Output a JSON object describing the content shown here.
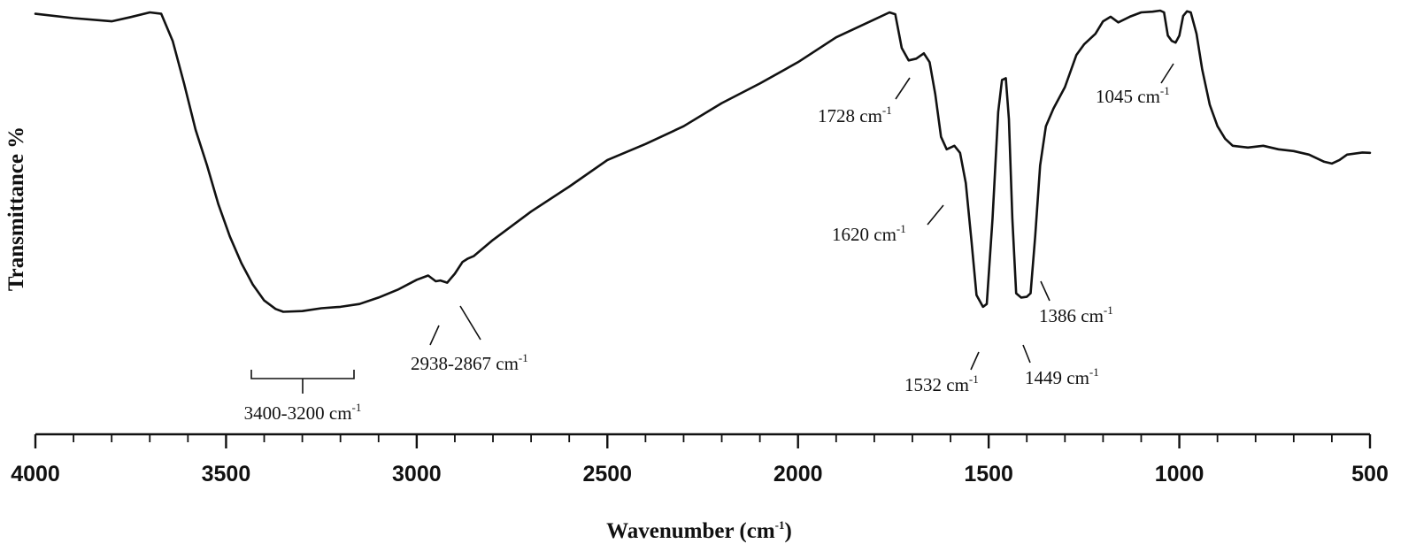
{
  "chart_data": {
    "type": "line",
    "xlabel": "Wavenumber (cm",
    "xlabel_sup": "-1",
    "xlabel_close": ")",
    "ylabel": "Transmittance %",
    "xlim": [
      4000,
      500
    ],
    "x_reversed": true,
    "xticks": [
      "4000",
      "3500",
      "3000",
      "2500",
      "2000",
      "1500",
      "1000",
      "500"
    ],
    "ylim": [
      0,
      100
    ],
    "grid": false,
    "legend": "none",
    "series": [
      {
        "color": "#111111",
        "points": [
          [
            4000,
            97.6
          ],
          [
            3900,
            96.4
          ],
          [
            3800,
            95.5
          ],
          [
            3750,
            96.7
          ],
          [
            3700,
            98.0
          ],
          [
            3670,
            97.6
          ],
          [
            3640,
            90.0
          ],
          [
            3610,
            78.0
          ],
          [
            3580,
            65.0
          ],
          [
            3550,
            55.0
          ],
          [
            3520,
            44.0
          ],
          [
            3490,
            35.0
          ],
          [
            3460,
            27.5
          ],
          [
            3430,
            21.5
          ],
          [
            3400,
            17.0
          ],
          [
            3370,
            14.6
          ],
          [
            3350,
            13.8
          ],
          [
            3300,
            14.0
          ],
          [
            3250,
            14.8
          ],
          [
            3200,
            15.2
          ],
          [
            3150,
            16.0
          ],
          [
            3100,
            17.8
          ],
          [
            3050,
            20.0
          ],
          [
            3000,
            22.8
          ],
          [
            2970,
            24.0
          ],
          [
            2950,
            22.4
          ],
          [
            2938,
            22.6
          ],
          [
            2920,
            22.0
          ],
          [
            2900,
            24.5
          ],
          [
            2880,
            27.8
          ],
          [
            2867,
            28.7
          ],
          [
            2850,
            29.5
          ],
          [
            2800,
            34.0
          ],
          [
            2700,
            42.0
          ],
          [
            2600,
            49.0
          ],
          [
            2500,
            56.5
          ],
          [
            2400,
            61.0
          ],
          [
            2300,
            66.0
          ],
          [
            2200,
            72.5
          ],
          [
            2100,
            78.0
          ],
          [
            2000,
            84.0
          ],
          [
            1900,
            91.0
          ],
          [
            1800,
            96.0
          ],
          [
            1760,
            98.0
          ],
          [
            1745,
            97.5
          ],
          [
            1728,
            88.0
          ],
          [
            1710,
            84.5
          ],
          [
            1690,
            85.0
          ],
          [
            1670,
            86.5
          ],
          [
            1655,
            84.0
          ],
          [
            1640,
            75.0
          ],
          [
            1625,
            63.0
          ],
          [
            1610,
            59.5
          ],
          [
            1590,
            60.5
          ],
          [
            1575,
            58.5
          ],
          [
            1560,
            50.0
          ],
          [
            1545,
            33.5
          ],
          [
            1532,
            18.5
          ],
          [
            1515,
            15.2
          ],
          [
            1505,
            16.0
          ],
          [
            1490,
            40.0
          ],
          [
            1475,
            70.0
          ],
          [
            1465,
            79.0
          ],
          [
            1455,
            79.5
          ],
          [
            1447,
            68.0
          ],
          [
            1438,
            40.0
          ],
          [
            1428,
            19.0
          ],
          [
            1415,
            17.8
          ],
          [
            1400,
            18.0
          ],
          [
            1390,
            19.0
          ],
          [
            1378,
            35.0
          ],
          [
            1365,
            55.0
          ],
          [
            1350,
            66.0
          ],
          [
            1330,
            71.0
          ],
          [
            1300,
            77.0
          ],
          [
            1270,
            86.0
          ],
          [
            1250,
            89.0
          ],
          [
            1220,
            92.0
          ],
          [
            1200,
            95.5
          ],
          [
            1180,
            96.8
          ],
          [
            1160,
            95.2
          ],
          [
            1130,
            96.8
          ],
          [
            1100,
            98.0
          ],
          [
            1070,
            98.2
          ],
          [
            1050,
            98.5
          ],
          [
            1040,
            98.0
          ],
          [
            1030,
            91.5
          ],
          [
            1020,
            90.0
          ],
          [
            1010,
            89.5
          ],
          [
            1000,
            91.5
          ],
          [
            990,
            97.0
          ],
          [
            980,
            98.3
          ],
          [
            970,
            98.0
          ],
          [
            955,
            92.0
          ],
          [
            940,
            82.0
          ],
          [
            920,
            72.0
          ],
          [
            900,
            66.0
          ],
          [
            880,
            62.5
          ],
          [
            860,
            60.5
          ],
          [
            820,
            60.0
          ],
          [
            780,
            60.5
          ],
          [
            740,
            59.5
          ],
          [
            700,
            59.0
          ],
          [
            660,
            58.0
          ],
          [
            620,
            56.0
          ],
          [
            600,
            55.5
          ],
          [
            580,
            56.5
          ],
          [
            560,
            58.0
          ],
          [
            520,
            58.6
          ],
          [
            500,
            58.5
          ]
        ]
      }
    ],
    "annotations": [
      {
        "text": "3400-3200 cm",
        "sup": "-1",
        "bracket": [
          3400,
          3200
        ]
      },
      {
        "text": "2938-2867 cm",
        "sup": "-1",
        "peaks": [
          2938,
          2867
        ]
      },
      {
        "text": "1728 cm",
        "sup": "-1",
        "peak": 1728
      },
      {
        "text": "1620 cm",
        "sup": "-1",
        "peak": 1620
      },
      {
        "text": "1532 cm",
        "sup": "-1",
        "peak": 1532
      },
      {
        "text": "1449 cm",
        "sup": "-1",
        "peak": 1449
      },
      {
        "text": "1386 cm",
        "sup": "-1",
        "peak": 1386
      },
      {
        "text": "1045 cm",
        "sup": "-1",
        "peak": 1045
      }
    ]
  }
}
